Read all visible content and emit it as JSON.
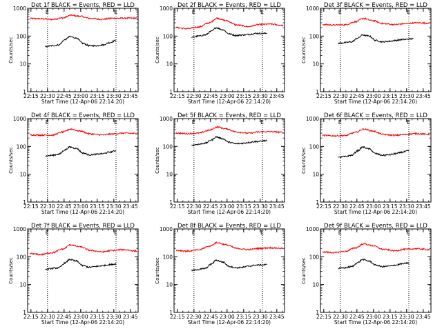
{
  "chart_data": [
    {
      "type": "line",
      "title": "Det 1f BLACK = Events, RED = LLD",
      "xlabel": "Start Time (12-Apr-06 22:14:20)",
      "ylabel": "Counts/sec",
      "x_ticks": [
        "22:15",
        "22:30",
        "22:45",
        "23:00",
        "23:15",
        "23:30",
        "23:45"
      ],
      "y_ticks": [
        "1",
        "10",
        "100",
        "1000"
      ],
      "ylim": [
        1,
        1000
      ],
      "y_scale": "log",
      "x_range_minutes": [
        0,
        97
      ],
      "markers": [
        {
          "label": "E",
          "x_minutes": 16
        },
        {
          "label": "E",
          "x_minutes": 78
        }
      ],
      "series": [
        {
          "color": "#ff0000",
          "x_minutes": [
            0,
            10,
            20,
            30,
            37,
            45,
            55,
            65,
            75,
            85,
            97
          ],
          "values": [
            430,
            420,
            400,
            450,
            560,
            520,
            430,
            400,
            440,
            440,
            440
          ]
        },
        {
          "color": "#000000",
          "x_minutes": [
            14,
            20,
            26,
            32,
            36,
            42,
            48,
            54,
            60,
            66,
            72,
            78
          ],
          "values": [
            42,
            45,
            48,
            75,
            95,
            85,
            55,
            45,
            45,
            48,
            58,
            70
          ]
        }
      ]
    },
    {
      "type": "line",
      "title": "Det 2f BLACK = Events, RED = LLD",
      "xlabel": "Start Time (12-Apr-06 22:14:20)",
      "ylabel": "Counts/sec",
      "x_ticks": [
        "22:15",
        "22:30",
        "22:45",
        "23:00",
        "23:15",
        "23:30",
        "23:45"
      ],
      "y_ticks": [
        "1",
        "10",
        "100",
        "1000"
      ],
      "ylim": [
        1,
        1000
      ],
      "y_scale": "log",
      "x_range_minutes": [
        0,
        97
      ],
      "markers": [
        {
          "label": "E",
          "x_minutes": 16
        },
        {
          "label": "E",
          "x_minutes": 78
        }
      ],
      "series": [
        {
          "color": "#ff0000",
          "x_minutes": [
            0,
            10,
            20,
            30,
            37,
            45,
            55,
            65,
            75,
            85,
            97
          ],
          "values": [
            200,
            185,
            210,
            300,
            440,
            360,
            250,
            220,
            260,
            270,
            240
          ]
        },
        {
          "color": "#000000",
          "x_minutes": [
            14,
            20,
            26,
            32,
            36,
            42,
            48,
            54,
            60,
            66,
            72,
            82
          ],
          "values": [
            90,
            100,
            110,
            150,
            200,
            170,
            120,
            105,
            110,
            115,
            125,
            125
          ]
        }
      ]
    },
    {
      "type": "line",
      "title": "Det 3f BLACK = Events, RED = LLD",
      "xlabel": "Start Time (12-Apr-06 22:14:20)",
      "ylabel": "Counts/sec",
      "x_ticks": [
        "22:15",
        "22:30",
        "22:45",
        "23:00",
        "23:15",
        "23:30",
        "23:45"
      ],
      "y_ticks": [
        "1",
        "10",
        "100",
        "1000"
      ],
      "ylim": [
        1,
        1000
      ],
      "y_scale": "log",
      "x_range_minutes": [
        0,
        97
      ],
      "markers": [
        {
          "label": "E",
          "x_minutes": 16
        },
        {
          "label": "E",
          "x_minutes": 78
        }
      ],
      "series": [
        {
          "color": "#ff0000",
          "x_minutes": [
            0,
            10,
            20,
            30,
            37,
            45,
            55,
            65,
            75,
            85,
            97
          ],
          "values": [
            260,
            250,
            255,
            330,
            430,
            360,
            280,
            260,
            280,
            300,
            290
          ]
        },
        {
          "color": "#000000",
          "x_minutes": [
            14,
            20,
            26,
            32,
            36,
            42,
            48,
            54,
            60,
            66,
            72,
            82
          ],
          "values": [
            55,
            58,
            62,
            85,
            110,
            100,
            70,
            62,
            65,
            70,
            75,
            80
          ]
        }
      ]
    },
    {
      "type": "line",
      "title": "Det 4f BLACK = Events, RED = LLD",
      "xlabel": "Start Time (12-Apr-06 22:14:20)",
      "ylabel": "Counts/sec",
      "x_ticks": [
        "22:15",
        "22:30",
        "22:45",
        "23:00",
        "23:15",
        "23:30",
        "23:45"
      ],
      "y_ticks": [
        "1",
        "10",
        "100",
        "1000"
      ],
      "ylim": [
        1,
        1000
      ],
      "y_scale": "log",
      "x_range_minutes": [
        0,
        97
      ],
      "markers": [
        {
          "label": "E",
          "x_minutes": 16
        },
        {
          "label": "E",
          "x_minutes": 78
        }
      ],
      "series": [
        {
          "color": "#ff0000",
          "x_minutes": [
            0,
            10,
            20,
            30,
            37,
            45,
            55,
            65,
            75,
            85,
            97
          ],
          "values": [
            260,
            255,
            255,
            330,
            420,
            360,
            280,
            260,
            280,
            300,
            290
          ]
        },
        {
          "color": "#000000",
          "x_minutes": [
            14,
            20,
            26,
            32,
            36,
            42,
            48,
            54,
            60,
            66,
            72,
            78
          ],
          "values": [
            45,
            48,
            52,
            75,
            95,
            85,
            58,
            50,
            52,
            55,
            62,
            70
          ]
        }
      ]
    },
    {
      "type": "line",
      "title": "Det 5f BLACK = Events, RED = LLD",
      "xlabel": "Start Time (12-Apr-06 22:14:20)",
      "ylabel": "Counts/sec",
      "x_ticks": [
        "22:15",
        "22:30",
        "22:45",
        "23:00",
        "23:15",
        "23:30",
        "23:45"
      ],
      "y_ticks": [
        "1",
        "10",
        "100",
        "1000"
      ],
      "ylim": [
        1,
        1000
      ],
      "y_scale": "log",
      "x_range_minutes": [
        0,
        97
      ],
      "markers": [
        {
          "label": "E",
          "x_minutes": 16
        },
        {
          "label": "E",
          "x_minutes": 78
        }
      ],
      "series": [
        {
          "color": "#ff0000",
          "x_minutes": [
            0,
            10,
            20,
            30,
            37,
            45,
            55,
            65,
            75,
            85,
            97
          ],
          "values": [
            300,
            290,
            300,
            380,
            500,
            430,
            330,
            300,
            330,
            340,
            320
          ]
        },
        {
          "color": "#000000",
          "x_minutes": [
            14,
            20,
            26,
            32,
            36,
            42,
            48,
            54,
            60,
            66,
            72,
            82
          ],
          "values": [
            110,
            120,
            130,
            170,
            220,
            190,
            140,
            125,
            130,
            140,
            150,
            160
          ]
        }
      ]
    },
    {
      "type": "line",
      "title": "Det 6f BLACK = Events, RED = LLD",
      "xlabel": "Start Time (12-Apr-06 22:14:20)",
      "ylabel": "Counts/sec",
      "x_ticks": [
        "22:15",
        "22:30",
        "22:45",
        "23:00",
        "23:15",
        "23:30",
        "23:45"
      ],
      "y_ticks": [
        "1",
        "10",
        "100",
        "1000"
      ],
      "ylim": [
        1,
        1000
      ],
      "y_scale": "log",
      "x_range_minutes": [
        0,
        97
      ],
      "markers": [
        {
          "label": "E",
          "x_minutes": 16
        },
        {
          "label": "E",
          "x_minutes": 78
        }
      ],
      "series": [
        {
          "color": "#ff0000",
          "x_minutes": [
            0,
            10,
            20,
            30,
            37,
            45,
            55,
            65,
            75,
            85,
            97
          ],
          "values": [
            250,
            240,
            245,
            320,
            420,
            360,
            270,
            250,
            270,
            290,
            270
          ]
        },
        {
          "color": "#000000",
          "x_minutes": [
            14,
            20,
            26,
            32,
            36,
            42,
            48,
            54,
            60,
            66,
            72,
            78
          ],
          "values": [
            40,
            43,
            48,
            70,
            95,
            82,
            55,
            48,
            50,
            55,
            62,
            70
          ]
        }
      ]
    },
    {
      "type": "line",
      "title": "Det 7f BLACK = Events, RED = LLD",
      "xlabel": "Start Time (12-Apr-06 22:14:20)",
      "ylabel": "Counts/sec",
      "x_ticks": [
        "22:15",
        "22:30",
        "22:45",
        "23:00",
        "23:15",
        "23:30",
        "23:45"
      ],
      "y_ticks": [
        "1",
        "10",
        "100",
        "1000"
      ],
      "ylim": [
        1,
        1000
      ],
      "y_scale": "log",
      "x_range_minutes": [
        0,
        97
      ],
      "markers": [
        {
          "label": "E",
          "x_minutes": 16
        },
        {
          "label": "E",
          "x_minutes": 78
        }
      ],
      "series": [
        {
          "color": "#ff0000",
          "x_minutes": [
            0,
            10,
            20,
            30,
            37,
            45,
            55,
            65,
            75,
            85,
            97
          ],
          "values": [
            130,
            120,
            140,
            190,
            270,
            230,
            170,
            150,
            170,
            180,
            160
          ]
        },
        {
          "color": "#000000",
          "x_minutes": [
            14,
            20,
            26,
            32,
            36,
            42,
            48,
            54,
            60,
            66,
            72,
            78
          ],
          "values": [
            35,
            38,
            40,
            60,
            80,
            70,
            48,
            42,
            45,
            48,
            52,
            55
          ]
        }
      ]
    },
    {
      "type": "line",
      "title": "Det 8f BLACK = Events, RED = LLD",
      "xlabel": "Start Time (12-Apr-06 22:14:20)",
      "ylabel": "Counts/sec",
      "x_ticks": [
        "22:15",
        "22:30",
        "22:45",
        "23:00",
        "23:15",
        "23:30",
        "23:45"
      ],
      "y_ticks": [
        "1",
        "10",
        "100",
        "1000"
      ],
      "ylim": [
        1,
        1000
      ],
      "y_scale": "log",
      "x_range_minutes": [
        0,
        97
      ],
      "markers": [
        {
          "label": "E",
          "x_minutes": 16
        },
        {
          "label": "E",
          "x_minutes": 78
        }
      ],
      "series": [
        {
          "color": "#ff0000",
          "x_minutes": [
            0,
            10,
            20,
            30,
            37,
            45,
            55,
            65,
            75,
            85,
            97
          ],
          "values": [
            170,
            160,
            175,
            240,
            320,
            270,
            200,
            180,
            200,
            210,
            200
          ]
        },
        {
          "color": "#000000",
          "x_minutes": [
            14,
            20,
            26,
            32,
            36,
            42,
            48,
            54,
            60,
            66,
            72,
            82
          ],
          "values": [
            32,
            35,
            38,
            55,
            75,
            65,
            45,
            40,
            42,
            46,
            50,
            52
          ]
        }
      ]
    },
    {
      "type": "line",
      "title": "Det 9f BLACK = Events, RED = LLD",
      "xlabel": "Start Time (12-Apr-06 22:14:20)",
      "ylabel": "Counts/sec",
      "x_ticks": [
        "22:15",
        "22:30",
        "22:45",
        "23:00",
        "23:15",
        "23:30",
        "23:45"
      ],
      "y_ticks": [
        "1",
        "10",
        "100",
        "1000"
      ],
      "ylim": [
        1,
        1000
      ],
      "y_scale": "log",
      "x_range_minutes": [
        0,
        97
      ],
      "markers": [
        {
          "label": "E",
          "x_minutes": 16
        },
        {
          "label": "E",
          "x_minutes": 78
        }
      ],
      "series": [
        {
          "color": "#ff0000",
          "x_minutes": [
            0,
            10,
            20,
            30,
            37,
            45,
            55,
            65,
            75,
            85,
            97
          ],
          "values": [
            150,
            140,
            155,
            210,
            290,
            250,
            185,
            165,
            185,
            195,
            180
          ]
        },
        {
          "color": "#000000",
          "x_minutes": [
            14,
            20,
            26,
            32,
            36,
            42,
            48,
            54,
            60,
            66,
            72,
            78
          ],
          "values": [
            38,
            40,
            44,
            62,
            80,
            70,
            50,
            44,
            46,
            50,
            56,
            60
          ]
        }
      ]
    }
  ]
}
